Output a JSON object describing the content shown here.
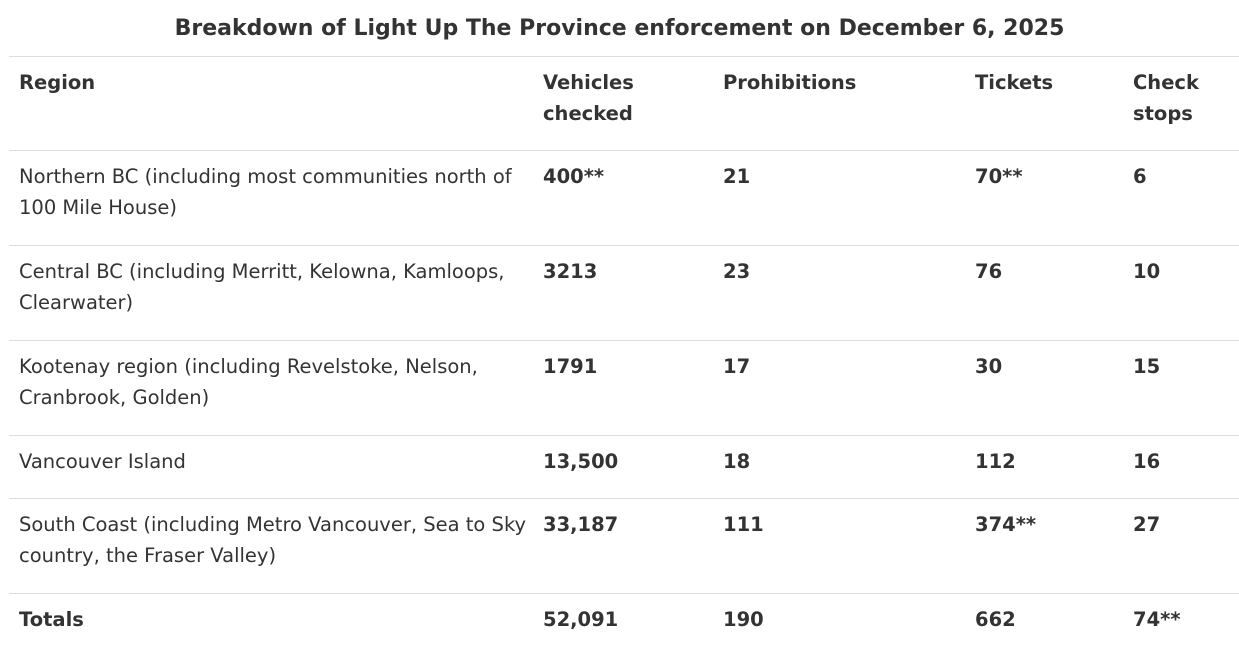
{
  "caption": "Breakdown of Light Up The Province enforcement on December 6, 2025",
  "headers": {
    "region": "Region",
    "vehicles_line1": "Vehicles",
    "vehicles_line2": "checked",
    "prohibitions": "Prohibitions",
    "tickets": "Tickets",
    "check_line1": "Check",
    "check_line2": "stops"
  },
  "rows": [
    {
      "region": "Northern BC (including most communities north of 100 Mile House)",
      "vehicles": "400**",
      "prohibitions": "21",
      "tickets": "70**",
      "check_stops": "6"
    },
    {
      "region": "Central BC (including Merritt, Kelowna, Kamloops, Clearwater)",
      "vehicles": "3213",
      "prohibitions": "23",
      "tickets": "76",
      "check_stops": "10"
    },
    {
      "region": "Kootenay region (including Revelstoke, Nelson, Cranbrook, Golden)",
      "vehicles": "1791",
      "prohibitions": "17",
      "tickets": "30",
      "check_stops": "15"
    },
    {
      "region": "Vancouver Island",
      "vehicles": "13,500",
      "prohibitions": "18",
      "tickets": "112",
      "check_stops": "16"
    },
    {
      "region": "South Coast (including Metro Vancouver, Sea to Sky country, the Fraser Valley)",
      "vehicles": "33,187",
      "prohibitions": "111",
      "tickets": "374**",
      "check_stops": "27"
    }
  ],
  "totals": {
    "label": "Totals",
    "vehicles": "52,091",
    "prohibitions": "190",
    "tickets": "662",
    "check_stops": "74**"
  }
}
